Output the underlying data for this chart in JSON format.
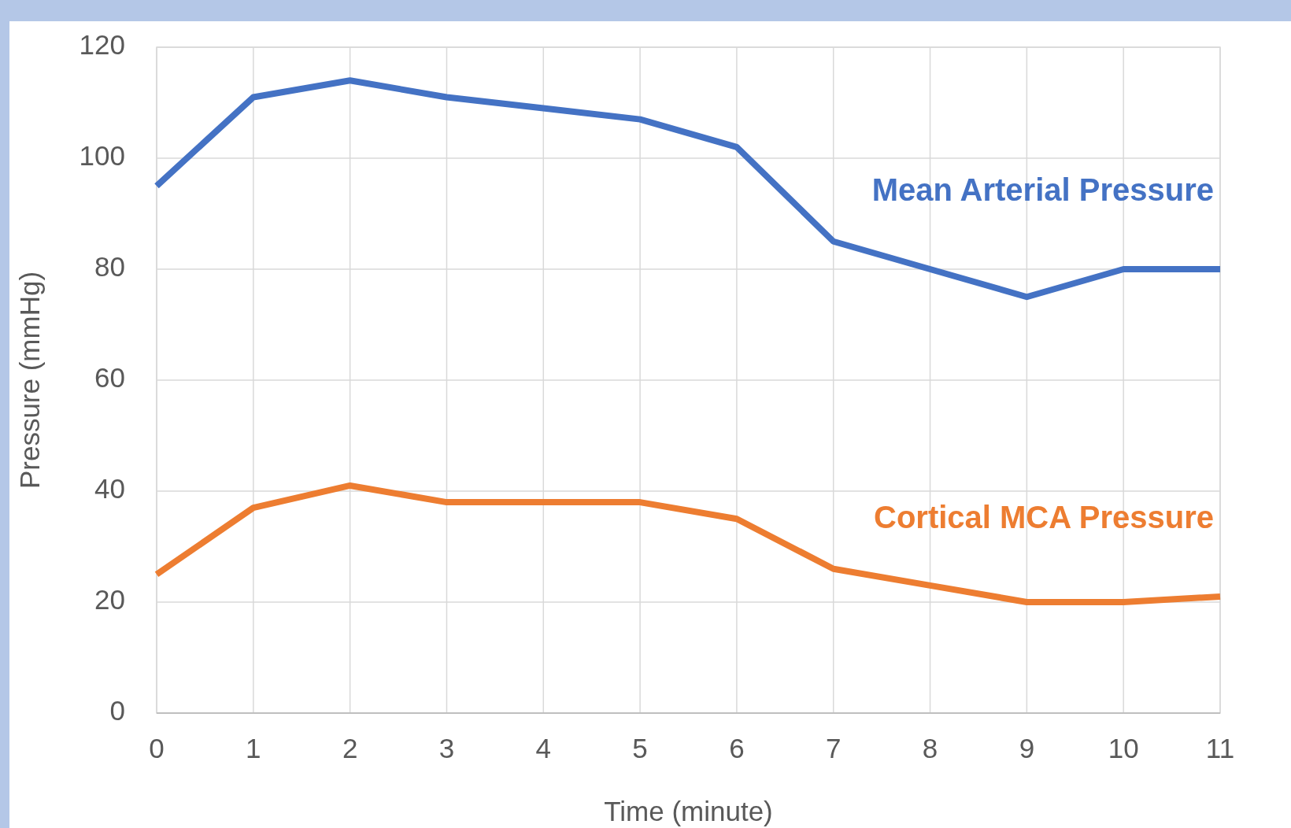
{
  "chart_data": {
    "type": "line",
    "xlabel": "Time (minute)",
    "ylabel": "Pressure (mmHg)",
    "x": [
      0,
      1,
      2,
      3,
      4,
      5,
      6,
      7,
      8,
      9,
      10,
      11
    ],
    "series": [
      {
        "name": "Mean Arterial Pressure",
        "color": "#4472c4",
        "values": [
          95,
          111,
          114,
          111,
          109,
          107,
          102,
          85,
          80,
          75,
          80,
          80
        ]
      },
      {
        "name": "Cortical MCA Pressure",
        "color": "#ed7d31",
        "values": [
          25,
          37,
          41,
          38,
          38,
          38,
          35,
          26,
          23,
          20,
          20,
          21
        ]
      }
    ],
    "xlim": [
      0,
      11
    ],
    "xticks": [
      0,
      1,
      2,
      3,
      4,
      5,
      6,
      7,
      8,
      9,
      10,
      11
    ],
    "ylim": [
      0,
      120
    ],
    "yticks": [
      0,
      20,
      40,
      60,
      80,
      100,
      120
    ],
    "grid": true,
    "legend": false,
    "marker": "none",
    "line_style": "solid"
  }
}
